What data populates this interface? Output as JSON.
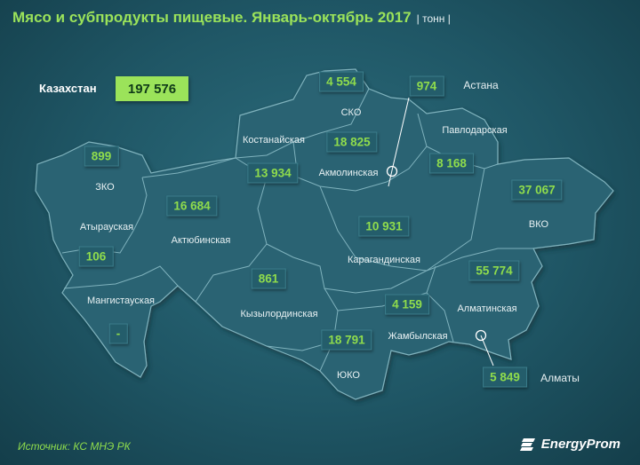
{
  "title": "Мясо и субпродукты пищевые. Январь-октябрь 2017",
  "unit": "| тонн |",
  "total": {
    "label": "Казахстан",
    "value": "197 576"
  },
  "regions": [
    {
      "id": "zko",
      "name": "ЗКО",
      "value": "899"
    },
    {
      "id": "atyrau",
      "name": "Атырауская",
      "value": "106"
    },
    {
      "id": "mangistau",
      "name": "Мангистауская",
      "value": "-"
    },
    {
      "id": "aktobe",
      "name": "Актюбинская",
      "value": "16 684"
    },
    {
      "id": "kostanay",
      "name": "Костанайская",
      "value": "13 934"
    },
    {
      "id": "sko",
      "name": "СКО",
      "value": "4 554"
    },
    {
      "id": "akmola",
      "name": "Акмолинская",
      "value": "18 825"
    },
    {
      "id": "astana",
      "name": "Астана",
      "value": "974"
    },
    {
      "id": "pavlodar",
      "name": "Павлодарская",
      "value": "8 168"
    },
    {
      "id": "vko",
      "name": "ВКО",
      "value": "37 067"
    },
    {
      "id": "karaganda",
      "name": "Карагандинская",
      "value": "10 931"
    },
    {
      "id": "kyzylorda",
      "name": "Кызылординская",
      "value": "861"
    },
    {
      "id": "zhambyl",
      "name": "Жамбылская",
      "value": "4 159"
    },
    {
      "id": "almaty_obl",
      "name": "Алматинская",
      "value": "55 774"
    },
    {
      "id": "uko",
      "name": "ЮКО",
      "value": "18 791"
    },
    {
      "id": "almaty",
      "name": "Алматы",
      "value": "5 849"
    }
  ],
  "source": "Источник: КС МНЭ РК",
  "brand": "EnergyProm",
  "colors": {
    "accent": "#9be35a",
    "map_fill": "#2a6473",
    "background": "#1f5665"
  }
}
